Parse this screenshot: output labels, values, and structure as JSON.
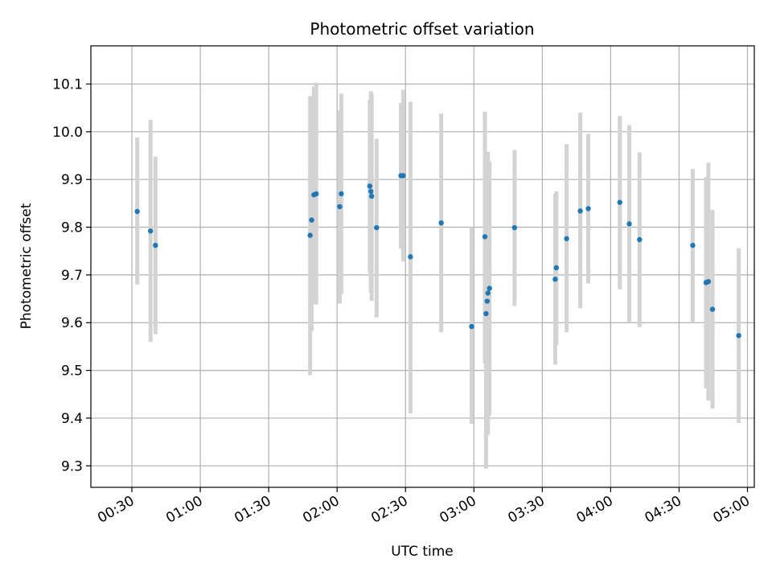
{
  "chart_data": {
    "type": "scatter",
    "title": "Photometric offset variation",
    "xlabel": "UTC time",
    "ylabel": "Photometric offset",
    "x_unit": "UTC time (HH:MM)",
    "xlim": [
      "00:12",
      "05:03"
    ],
    "ylim": [
      9.255,
      10.18
    ],
    "grid": true,
    "x_ticks": [
      "00:30",
      "01:00",
      "01:30",
      "02:00",
      "02:30",
      "03:00",
      "03:30",
      "04:00",
      "04:30",
      "05:00"
    ],
    "y_ticks": [
      9.3,
      9.4,
      9.5,
      9.6,
      9.7,
      9.8,
      9.9,
      10.0,
      10.1
    ],
    "y_tick_labels": [
      "9.3",
      "9.4",
      "9.5",
      "9.6",
      "9.7",
      "9.8",
      "9.9",
      "10.0",
      "10.1"
    ],
    "point_color": "#1f77b4",
    "errorbar_color": "#d3d3d3",
    "points": [
      {
        "x": "00:32:20",
        "y": 9.833,
        "ylow": 9.68,
        "yhigh": 9.988
      },
      {
        "x": "00:38:10",
        "y": 9.792,
        "ylow": 9.56,
        "yhigh": 10.025
      },
      {
        "x": "00:40:20",
        "y": 9.762,
        "ylow": 9.576,
        "yhigh": 9.948
      },
      {
        "x": "01:48:10",
        "y": 9.783,
        "ylow": 9.49,
        "yhigh": 10.075
      },
      {
        "x": "01:48:50",
        "y": 9.815,
        "ylow": 9.583,
        "yhigh": 10.046
      },
      {
        "x": "01:49:50",
        "y": 9.868,
        "ylow": 9.641,
        "yhigh": 10.095
      },
      {
        "x": "01:50:50",
        "y": 9.87,
        "ylow": 9.638,
        "yhigh": 10.103
      },
      {
        "x": "02:01:10",
        "y": 9.843,
        "ylow": 9.64,
        "yhigh": 10.045
      },
      {
        "x": "02:01:50",
        "y": 9.87,
        "ylow": 9.66,
        "yhigh": 10.08
      },
      {
        "x": "02:14:20",
        "y": 9.886,
        "ylow": 9.704,
        "yhigh": 10.067
      },
      {
        "x": "02:14:50",
        "y": 9.875,
        "ylow": 9.663,
        "yhigh": 10.085
      },
      {
        "x": "02:15:10",
        "y": 9.865,
        "ylow": 9.646,
        "yhigh": 10.08
      },
      {
        "x": "02:17:20",
        "y": 9.799,
        "ylow": 9.611,
        "yhigh": 9.985
      },
      {
        "x": "02:28:00",
        "y": 9.908,
        "ylow": 9.755,
        "yhigh": 10.06
      },
      {
        "x": "02:29:00",
        "y": 9.908,
        "ylow": 9.728,
        "yhigh": 10.088
      },
      {
        "x": "02:32:10",
        "y": 9.738,
        "ylow": 9.41,
        "yhigh": 10.063
      },
      {
        "x": "02:45:40",
        "y": 9.809,
        "ylow": 9.58,
        "yhigh": 10.038
      },
      {
        "x": "02:59:00",
        "y": 9.592,
        "ylow": 9.388,
        "yhigh": 9.8
      },
      {
        "x": "03:04:50",
        "y": 9.78,
        "ylow": 9.515,
        "yhigh": 10.042
      },
      {
        "x": "03:05:20",
        "y": 9.619,
        "ylow": 9.294,
        "yhigh": 9.942
      },
      {
        "x": "03:05:50",
        "y": 9.645,
        "ylow": 9.4,
        "yhigh": 9.9
      },
      {
        "x": "03:06:10",
        "y": 9.662,
        "ylow": 9.365,
        "yhigh": 9.958
      },
      {
        "x": "03:06:50",
        "y": 9.672,
        "ylow": 9.406,
        "yhigh": 9.938
      },
      {
        "x": "03:17:50",
        "y": 9.799,
        "ylow": 9.635,
        "yhigh": 9.962
      },
      {
        "x": "03:35:40",
        "y": 9.691,
        "ylow": 9.512,
        "yhigh": 9.87
      },
      {
        "x": "03:36:10",
        "y": 9.715,
        "ylow": 9.553,
        "yhigh": 9.875
      },
      {
        "x": "03:40:40",
        "y": 9.776,
        "ylow": 9.58,
        "yhigh": 9.974
      },
      {
        "x": "03:46:40",
        "y": 9.834,
        "ylow": 9.63,
        "yhigh": 10.04
      },
      {
        "x": "03:50:10",
        "y": 9.839,
        "ylow": 9.682,
        "yhigh": 9.996
      },
      {
        "x": "04:04:00",
        "y": 9.852,
        "ylow": 9.67,
        "yhigh": 10.033
      },
      {
        "x": "04:08:10",
        "y": 9.807,
        "ylow": 9.6,
        "yhigh": 10.014
      },
      {
        "x": "04:12:40",
        "y": 9.774,
        "ylow": 9.591,
        "yhigh": 9.957
      },
      {
        "x": "04:36:00",
        "y": 9.762,
        "ylow": 9.6,
        "yhigh": 9.922
      },
      {
        "x": "04:41:50",
        "y": 9.684,
        "ylow": 9.462,
        "yhigh": 9.905
      },
      {
        "x": "04:42:50",
        "y": 9.686,
        "ylow": 9.437,
        "yhigh": 9.935
      },
      {
        "x": "04:44:40",
        "y": 9.628,
        "ylow": 9.42,
        "yhigh": 9.836
      },
      {
        "x": "04:56:10",
        "y": 9.573,
        "ylow": 9.39,
        "yhigh": 9.756
      }
    ]
  }
}
